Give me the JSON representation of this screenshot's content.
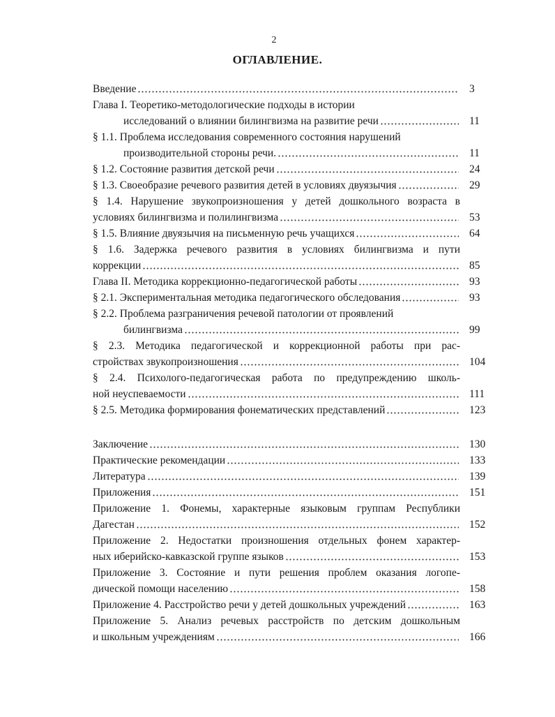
{
  "header": {
    "page_number": 2,
    "title": "ОГЛАВЛЕНИЕ."
  },
  "sections": [
    {
      "entries": [
        {
          "lines": [
            "Введение"
          ],
          "page": 3
        },
        {
          "lines": [
            "Глава I. Теоретико-методологические подходы в истории",
            "исследований о влиянии билингвизма на развитие речи"
          ],
          "page": 11,
          "hanging_indent": true
        },
        {
          "lines": [
            "§ 1.1. Проблема исследования современного состояния нарушений",
            "производительной стороны речи."
          ],
          "page": 11,
          "hanging_indent": true
        },
        {
          "lines": [
            "§ 1.2.  Состояние развития детской речи"
          ],
          "page": 24
        },
        {
          "lines": [
            "§ 1.3. Своеобразие речевого развития детей в условиях двуязычия"
          ],
          "page": 29
        },
        {
          "lines": [
            "§ 1.4. Нарушение звукопроизношения у детей дошкольного возраста в",
            "условиях билингвизма и полилингвизма"
          ],
          "page": 53
        },
        {
          "lines": [
            "§ 1.5. Влияние двуязычия на письменную речь учащихся"
          ],
          "page": 64
        },
        {
          "lines": [
            "§ 1.6. Задержка речевого развития в условиях билингвизма и пути",
            "коррекции"
          ],
          "page": 85
        },
        {
          "lines": [
            "Глава II. Методика коррекционно-педагогической работы"
          ],
          "page": 93
        },
        {
          "lines": [
            "§ 2.1. Экспериментальная методика педагогического обследования"
          ],
          "page": 93
        },
        {
          "lines": [
            "§ 2.2. Проблема разграничения речевой патологии от проявлений",
            "билингвизма"
          ],
          "page": 99,
          "hanging_indent": true
        },
        {
          "lines": [
            "§ 2.3. Методика педагогической и коррекционной работы при рас-",
            "стройствах звукопроизношения"
          ],
          "page": 104
        },
        {
          "lines": [
            "§ 2.4. Психолого-педагогическая работа по предупреждению школь-",
            "ной неуспеваемости"
          ],
          "page": 111
        },
        {
          "lines": [
            "§ 2.5. Методика формирования фонематических представлений"
          ],
          "page": 123
        }
      ]
    },
    {
      "entries": [
        {
          "lines": [
            "Заключение"
          ],
          "page": 130
        },
        {
          "lines": [
            "Практические рекомендации"
          ],
          "page": 133
        },
        {
          "lines": [
            "Литература"
          ],
          "page": 139
        },
        {
          "lines": [
            "Приложения"
          ],
          "page": 151
        },
        {
          "lines": [
            "Приложение 1. Фонемы, характерные языковым группам Республики",
            "Дагестан"
          ],
          "page": 152
        },
        {
          "lines": [
            "Приложение 2. Недостатки произношения отдельных фонем характер-",
            "ных иберийско-кавказской группе языков"
          ],
          "page": 153
        },
        {
          "lines": [
            "Приложение 3. Состояние и пути решения проблем оказания логопе-",
            "дической помощи населению"
          ],
          "page": 158
        },
        {
          "lines": [
            "Приложение 4. Расстройство речи у детей дошкольных учреждений"
          ],
          "page": 163
        },
        {
          "lines": [
            "Приложение 5. Анализ речевых расстройств по детским  дошкольным",
            "и школьным учреждениям"
          ],
          "page": 166
        }
      ]
    }
  ]
}
